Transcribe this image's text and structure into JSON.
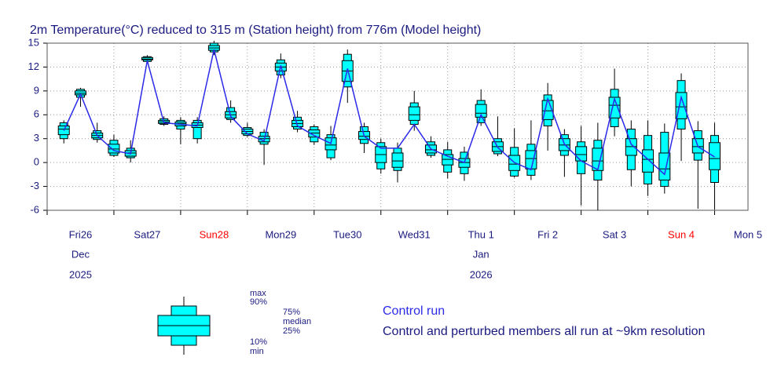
{
  "chart_data": {
    "type": "boxplot",
    "title": "2m Temperature(°C) reduced to 315 m (Station height) from 776m (Model height)",
    "x": [
      0.25,
      0.5,
      0.75,
      1.0,
      1.25,
      1.5,
      1.75,
      2.0,
      2.25,
      2.5,
      2.75,
      3.0,
      3.25,
      3.5,
      3.75,
      4.0,
      4.25,
      4.5,
      4.75,
      5.0,
      5.25,
      5.5,
      5.75,
      6.0,
      6.25,
      6.5,
      6.75,
      7.0,
      7.25,
      7.5,
      7.75,
      8.0,
      8.25,
      8.5,
      8.75,
      9.0,
      9.25,
      9.5,
      9.75,
      10.0
    ],
    "min": [
      2.4,
      7,
      2.5,
      0.7,
      0,
      12.5,
      4.6,
      2.3,
      2.4,
      13.5,
      5.0,
      3.2,
      -0.3,
      10.6,
      3.8,
      2.2,
      0.3,
      7.5,
      1.2,
      -1.4,
      -2.5,
      4.0,
      0.6,
      -2.0,
      -2.3,
      4.6,
      0.8,
      -1.9,
      -2.2,
      1.5,
      -1.8,
      -5.4,
      -6,
      3.3,
      -3.0,
      -4.2,
      -3.9,
      0.2,
      -5.8,
      -5.9
    ],
    "p10": [
      3.0,
      8.2,
      2.9,
      0.9,
      0.6,
      12.7,
      4.8,
      4.2,
      3.0,
      13.9,
      5.4,
      3.4,
      2.3,
      11.0,
      4.2,
      2.6,
      0.6,
      9.5,
      2.4,
      -0.8,
      -1.0,
      4.8,
      0.9,
      -1.2,
      -1.4,
      5.0,
      1.1,
      -1.7,
      -1.6,
      4.6,
      0.9,
      -1.4,
      -2.2,
      4.5,
      -0.9,
      -2.7,
      -3.0,
      4.2,
      0.3,
      -2.5
    ],
    "p25": [
      3.5,
      8.5,
      3.1,
      1.2,
      0.8,
      12.9,
      4.9,
      4.6,
      4.4,
      14.1,
      5.6,
      3.6,
      2.6,
      11.5,
      4.5,
      3.2,
      1.6,
      10.2,
      2.9,
      0,
      -0.6,
      5.3,
      1.2,
      -0.3,
      -0.6,
      5.7,
      1.4,
      -1.0,
      -0.8,
      5.4,
      1.5,
      0.2,
      -1.0,
      5.6,
      0.9,
      -1.2,
      -2.2,
      5.5,
      1.2,
      -0.9
    ],
    "median": [
      4.2,
      8.7,
      3.4,
      1.7,
      1.2,
      13.0,
      5.1,
      4.9,
      4.7,
      14.4,
      6.0,
      3.9,
      3.0,
      12.0,
      4.9,
      3.7,
      2.2,
      11.5,
      3.3,
      1,
      0.2,
      6.0,
      1.6,
      0.4,
      0,
      6.2,
      2.0,
      -0.2,
      0.5,
      6.5,
      2.2,
      1.0,
      0.2,
      7.2,
      2.0,
      0.4,
      -0.8,
      7.0,
      2.0,
      0.5
    ],
    "p75": [
      4.6,
      9.0,
      3.7,
      2.3,
      1.5,
      13.2,
      5.3,
      5.1,
      5.0,
      14.7,
      6.4,
      4.2,
      3.3,
      12.5,
      5.3,
      4.1,
      3.1,
      12.8,
      3.9,
      2,
      1.2,
      7.0,
      2.2,
      1.0,
      0.5,
      7.3,
      2.6,
      0.9,
      1.5,
      7.8,
      3.0,
      2.0,
      1.8,
      8.2,
      3.0,
      1.6,
      1.2,
      8.8,
      3.0,
      2.5
    ],
    "p90": [
      5.0,
      9.2,
      4.0,
      2.8,
      1.8,
      13.3,
      5.5,
      5.3,
      5.3,
      15.0,
      6.9,
      4.4,
      3.8,
      12.9,
      5.7,
      4.5,
      3.5,
      13.6,
      4.5,
      2.5,
      1.8,
      7.5,
      2.6,
      1.6,
      1.3,
      7.8,
      3.0,
      1.9,
      2.3,
      8.5,
      3.5,
      2.6,
      2.8,
      9.2,
      4.2,
      3.4,
      3.8,
      10.3,
      4.0,
      3.4
    ],
    "max": [
      5.3,
      9.4,
      5,
      3.5,
      2.8,
      13.5,
      5.8,
      5.7,
      5.7,
      15.3,
      7.8,
      5.0,
      4.2,
      13.7,
      6.5,
      4.8,
      4.6,
      14.2,
      5.0,
      3.0,
      2.5,
      9.0,
      3.3,
      2.6,
      2.0,
      9.2,
      5.8,
      4.3,
      5.3,
      10.0,
      4.2,
      4.6,
      5.0,
      11.8,
      5.3,
      5.3,
      4.9,
      11.2,
      5.2,
      5.0
    ],
    "box_color": "#00ffff",
    "control": {
      "name": "Control run",
      "color": "#2a2ae8",
      "values": [
        4.0,
        8.6,
        3.4,
        1.5,
        1.1,
        12.8,
        5.0,
        4.8,
        4.6,
        14.2,
        5.8,
        3.6,
        2.7,
        12.2,
        4.6,
        3.4,
        2.4,
        11.8,
        3.3,
        1.8,
        1.8,
        4.8,
        1.7,
        0.8,
        0,
        6.0,
        1.9,
        0,
        -0.9,
        8.0,
        2.3,
        0.2,
        -0.9,
        8.0,
        2.3,
        0.4,
        -1.5,
        8.2,
        2.0,
        0.7
      ]
    },
    "xlim": [
      0,
      10.5
    ],
    "xticks": [
      {
        "value": 0.5,
        "label": "Fri26"
      },
      {
        "value": 1.5,
        "label": "Sat27"
      },
      {
        "value": 2.5,
        "label": "Sun28"
      },
      {
        "value": 3.5,
        "label": "Mon29"
      },
      {
        "value": 4.5,
        "label": "Tue30"
      },
      {
        "value": 5.5,
        "label": "Wed31"
      },
      {
        "value": 6.5,
        "label": "Thu 1"
      },
      {
        "value": 7.5,
        "label": "Fri 2"
      },
      {
        "value": 8.5,
        "label": "Sat 3"
      },
      {
        "value": 9.5,
        "label": "Sun 4"
      },
      {
        "value": 10.5,
        "label": "Mon 5"
      }
    ],
    "xtick_colors": [
      "#1a1a80",
      "#1a1a80",
      "#ff0000",
      "#1a1a80",
      "#1a1a80",
      "#1a1a80",
      "#1a1a80",
      "#1a1a80",
      "#1a1a80",
      "#ff0000",
      "#1a1a80"
    ],
    "x_month_labels": [
      {
        "value": 0.5,
        "label": "Dec"
      },
      {
        "value": 6.5,
        "label": "Jan"
      }
    ],
    "x_year_labels": [
      {
        "value": 0.5,
        "label": "2025"
      },
      {
        "value": 6.5,
        "label": "2026"
      }
    ],
    "ylim": [
      -6,
      15
    ],
    "yticks": [
      -6,
      -3,
      0,
      3,
      6,
      9,
      12,
      15
    ],
    "grid": true,
    "legend": {
      "max": "max",
      "p90": "90%",
      "p75": "75%",
      "median": "median",
      "p25": "25%",
      "p10": "10%",
      "min": "min",
      "note": "Control and perturbed members all run at ~9km resolution"
    }
  }
}
